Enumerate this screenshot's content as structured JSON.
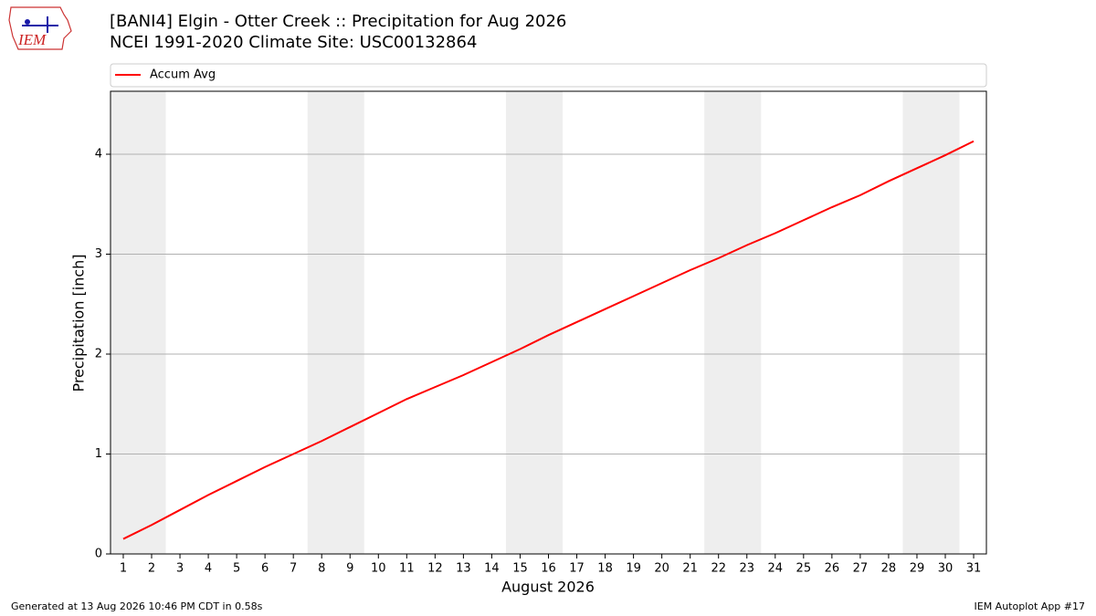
{
  "chart_data": {
    "type": "line",
    "title": "[BANI4] Elgin - Otter Creek :: Precipitation for Aug 2026",
    "subtitle": "NCEI 1991-2020 Climate Site: USC00132864",
    "x_label": "August 2026",
    "y_label": "Precipitation [inch]",
    "x": [
      1,
      2,
      3,
      4,
      5,
      6,
      7,
      8,
      9,
      10,
      11,
      12,
      13,
      14,
      15,
      16,
      17,
      18,
      19,
      20,
      21,
      22,
      23,
      24,
      25,
      26,
      27,
      28,
      29,
      30,
      31
    ],
    "series": [
      {
        "name": "Accum Avg",
        "color": "#ff0000",
        "values": [
          0.15,
          0.29,
          0.44,
          0.59,
          0.73,
          0.87,
          1.0,
          1.13,
          1.27,
          1.41,
          1.55,
          1.67,
          1.79,
          1.92,
          2.05,
          2.19,
          2.32,
          2.45,
          2.58,
          2.71,
          2.84,
          2.96,
          3.09,
          3.21,
          3.34,
          3.47,
          3.59,
          3.73,
          3.86,
          3.99,
          4.13
        ]
      }
    ],
    "xlim": [
      0.55,
      31.45
    ],
    "xticks": [
      1,
      2,
      3,
      4,
      5,
      6,
      7,
      8,
      9,
      10,
      11,
      12,
      13,
      14,
      15,
      16,
      17,
      18,
      19,
      20,
      21,
      22,
      23,
      24,
      25,
      26,
      27,
      28,
      29,
      30,
      31
    ],
    "ylim": [
      0,
      4.63
    ],
    "yticks": [
      0,
      1,
      2,
      3,
      4
    ],
    "grid": true,
    "legend": "top"
  },
  "logo": "IEM",
  "footer": {
    "left": "Generated at 13 Aug 2026 10:46 PM CDT in 0.58s",
    "right": "IEM Autoplot App #17"
  }
}
